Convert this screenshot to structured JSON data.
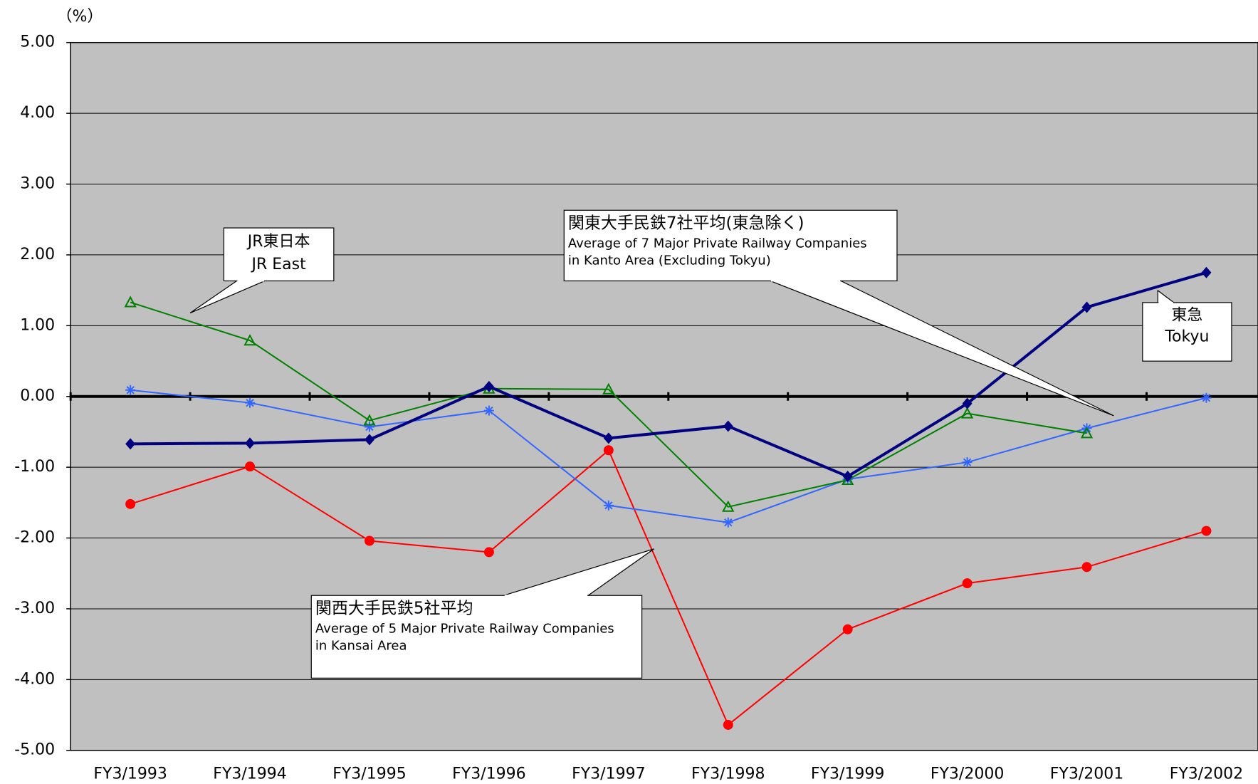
{
  "chart_data": {
    "type": "line",
    "unit_label": "（%）",
    "categories": [
      "FY3/1993",
      "FY3/1994",
      "FY3/1995",
      "FY3/1996",
      "FY3/1997",
      "FY3/1998",
      "FY3/1999",
      "FY3/2000",
      "FY3/2001",
      "FY3/2002"
    ],
    "ylim": [
      -5,
      5
    ],
    "yticks": [
      {
        "value": 5,
        "label": "5.00"
      },
      {
        "value": 4,
        "label": "4.00"
      },
      {
        "value": 3,
        "label": "3.00"
      },
      {
        "value": 2,
        "label": "2.00"
      },
      {
        "value": 1,
        "label": "1.00"
      },
      {
        "value": 0,
        "label": "0.00"
      },
      {
        "value": -1,
        "label": "-1.00"
      },
      {
        "value": -2,
        "label": "-2.00"
      },
      {
        "value": -3,
        "label": "-3.00"
      },
      {
        "value": -4,
        "label": "-4.00"
      },
      {
        "value": -5,
        "label": "-5.00"
      }
    ],
    "grid": true,
    "background": "#c0c0c0",
    "series": [
      {
        "name": "東急",
        "name_en": [
          "Tokyu"
        ],
        "color": "#000080",
        "marker": "diamond",
        "width": 4,
        "values": [
          -0.67,
          -0.66,
          -0.61,
          0.14,
          -0.59,
          -0.42,
          -1.13,
          -0.1,
          1.26,
          1.75
        ]
      },
      {
        "name": "JR東日本",
        "name_en": [
          "JR East"
        ],
        "color": "#008000",
        "marker": "triangle",
        "width": 2,
        "values": [
          1.33,
          0.79,
          -0.34,
          0.11,
          0.1,
          -1.56,
          -1.18,
          -0.24,
          -0.52,
          null
        ]
      },
      {
        "name": "関東大手民鉄7社平均(東急除く)",
        "name_en": [
          "Average of 7 Major Private Railway Companies",
          "in Kanto Area (Excluding Tokyu)"
        ],
        "color": "#3366ff",
        "marker": "star",
        "width": 2,
        "values": [
          0.09,
          -0.09,
          -0.43,
          -0.2,
          -1.54,
          -1.78,
          -1.17,
          -0.93,
          -0.45,
          -0.02
        ]
      },
      {
        "name": "関西大手民鉄5社平均",
        "name_en": [
          "Average of 5 Major Private Railway Companies",
          "in Kansai Area"
        ],
        "color": "#ff0000",
        "marker": "circle",
        "width": 2,
        "values": [
          -1.52,
          -0.99,
          -2.04,
          -2.2,
          -0.76,
          -4.64,
          -3.29,
          -2.64,
          -2.41,
          -1.9
        ]
      }
    ]
  }
}
